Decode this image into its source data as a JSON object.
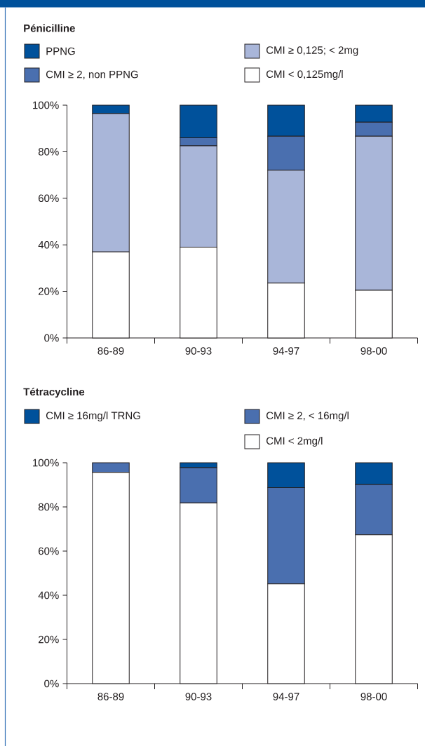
{
  "chart_data": [
    {
      "type": "bar",
      "title": "Pénicilline",
      "stacked": true,
      "legend": "top",
      "categories": [
        "86-89",
        "90-93",
        "94-97",
        "98-00"
      ],
      "ylim": [
        0,
        100
      ],
      "yticks": [
        {
          "value": 0,
          "label": "0%"
        },
        {
          "value": 20,
          "label": "20%"
        },
        {
          "value": 40,
          "label": "40%"
        },
        {
          "value": 60,
          "label": "60%"
        },
        {
          "value": 80,
          "label": "80%"
        },
        {
          "value": 100,
          "label": "100%"
        }
      ],
      "series": [
        {
          "name": "CMI < 0,125mg/l",
          "color": "#ffffff",
          "values": [
            37,
            39,
            23.6,
            20.5
          ]
        },
        {
          "name": "CMI ≥ 0,125; < 2mg",
          "color": "#a9b6d9",
          "values": [
            59.4,
            43.5,
            48.5,
            66.2
          ]
        },
        {
          "name": "CMI ≥ 2, non PPNG",
          "color": "#4a6faf",
          "values": [
            0,
            3.5,
            14.6,
            6
          ]
        },
        {
          "name": "PPNG",
          "color": "#00519b",
          "values": [
            3.6,
            14,
            13.3,
            7.3
          ]
        }
      ]
    },
    {
      "type": "bar",
      "title": "Tétracycline",
      "stacked": true,
      "legend": "top",
      "categories": [
        "86-89",
        "90-93",
        "94-97",
        "98-00"
      ],
      "ylim": [
        0,
        100
      ],
      "yticks": [
        {
          "value": 0,
          "label": "0%"
        },
        {
          "value": 20,
          "label": "20%"
        },
        {
          "value": 40,
          "label": "40%"
        },
        {
          "value": 60,
          "label": "60%"
        },
        {
          "value": 80,
          "label": "80%"
        },
        {
          "value": 100,
          "label": "100%"
        }
      ],
      "series": [
        {
          "name": "CMI < 2mg/l",
          "color": "#ffffff",
          "values": [
            95.6,
            81.8,
            45.2,
            67.4
          ]
        },
        {
          "name": "CMI ≥ 2, < 16mg/l",
          "color": "#4a6faf",
          "values": [
            4.4,
            16,
            43.5,
            22.8
          ]
        },
        {
          "name": "CMI ≥ 16mg/l TRNG",
          "color": "#00519b",
          "values": [
            0,
            2.2,
            11.3,
            9.8
          ]
        }
      ]
    }
  ]
}
